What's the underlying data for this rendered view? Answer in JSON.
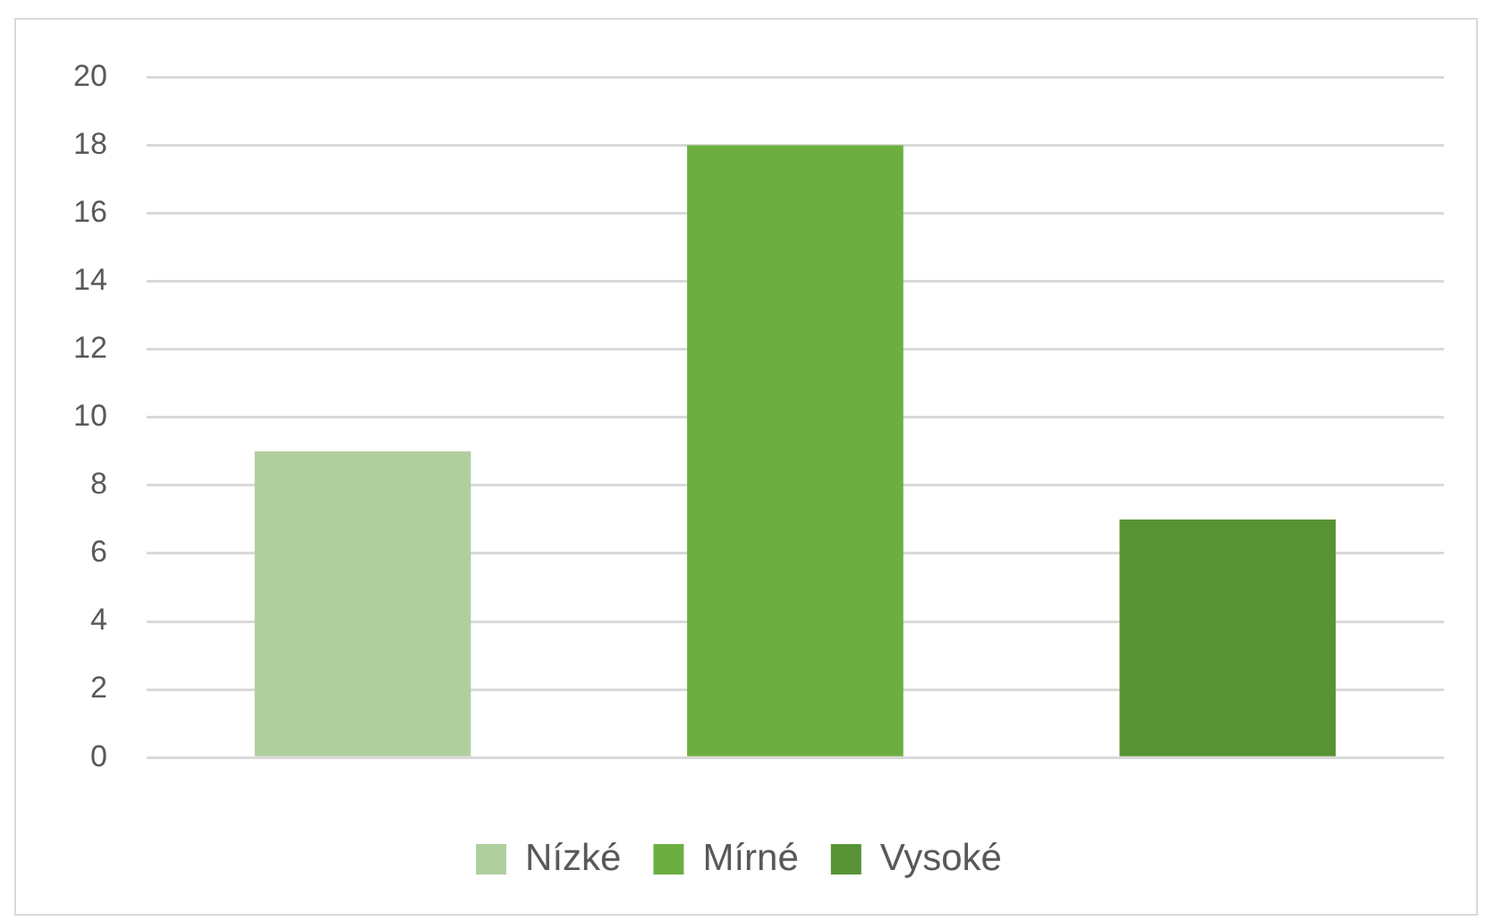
{
  "chart_data": {
    "type": "bar",
    "categories": [
      null,
      null,
      null
    ],
    "series": [
      {
        "name": "Nízké",
        "color": "#b0cf9e",
        "values": [
          9,
          null,
          null
        ]
      },
      {
        "name": "Mírné",
        "color": "#6caf40",
        "values": [
          null,
          18,
          null
        ]
      },
      {
        "name": "Vysoké",
        "color": "#579335",
        "values": [
          null,
          null,
          7
        ]
      }
    ],
    "ylim": [
      0,
      20
    ],
    "yticks": [
      0,
      2,
      4,
      6,
      8,
      10,
      12,
      14,
      16,
      18,
      20
    ],
    "grid": "y",
    "legend": "bottom"
  }
}
